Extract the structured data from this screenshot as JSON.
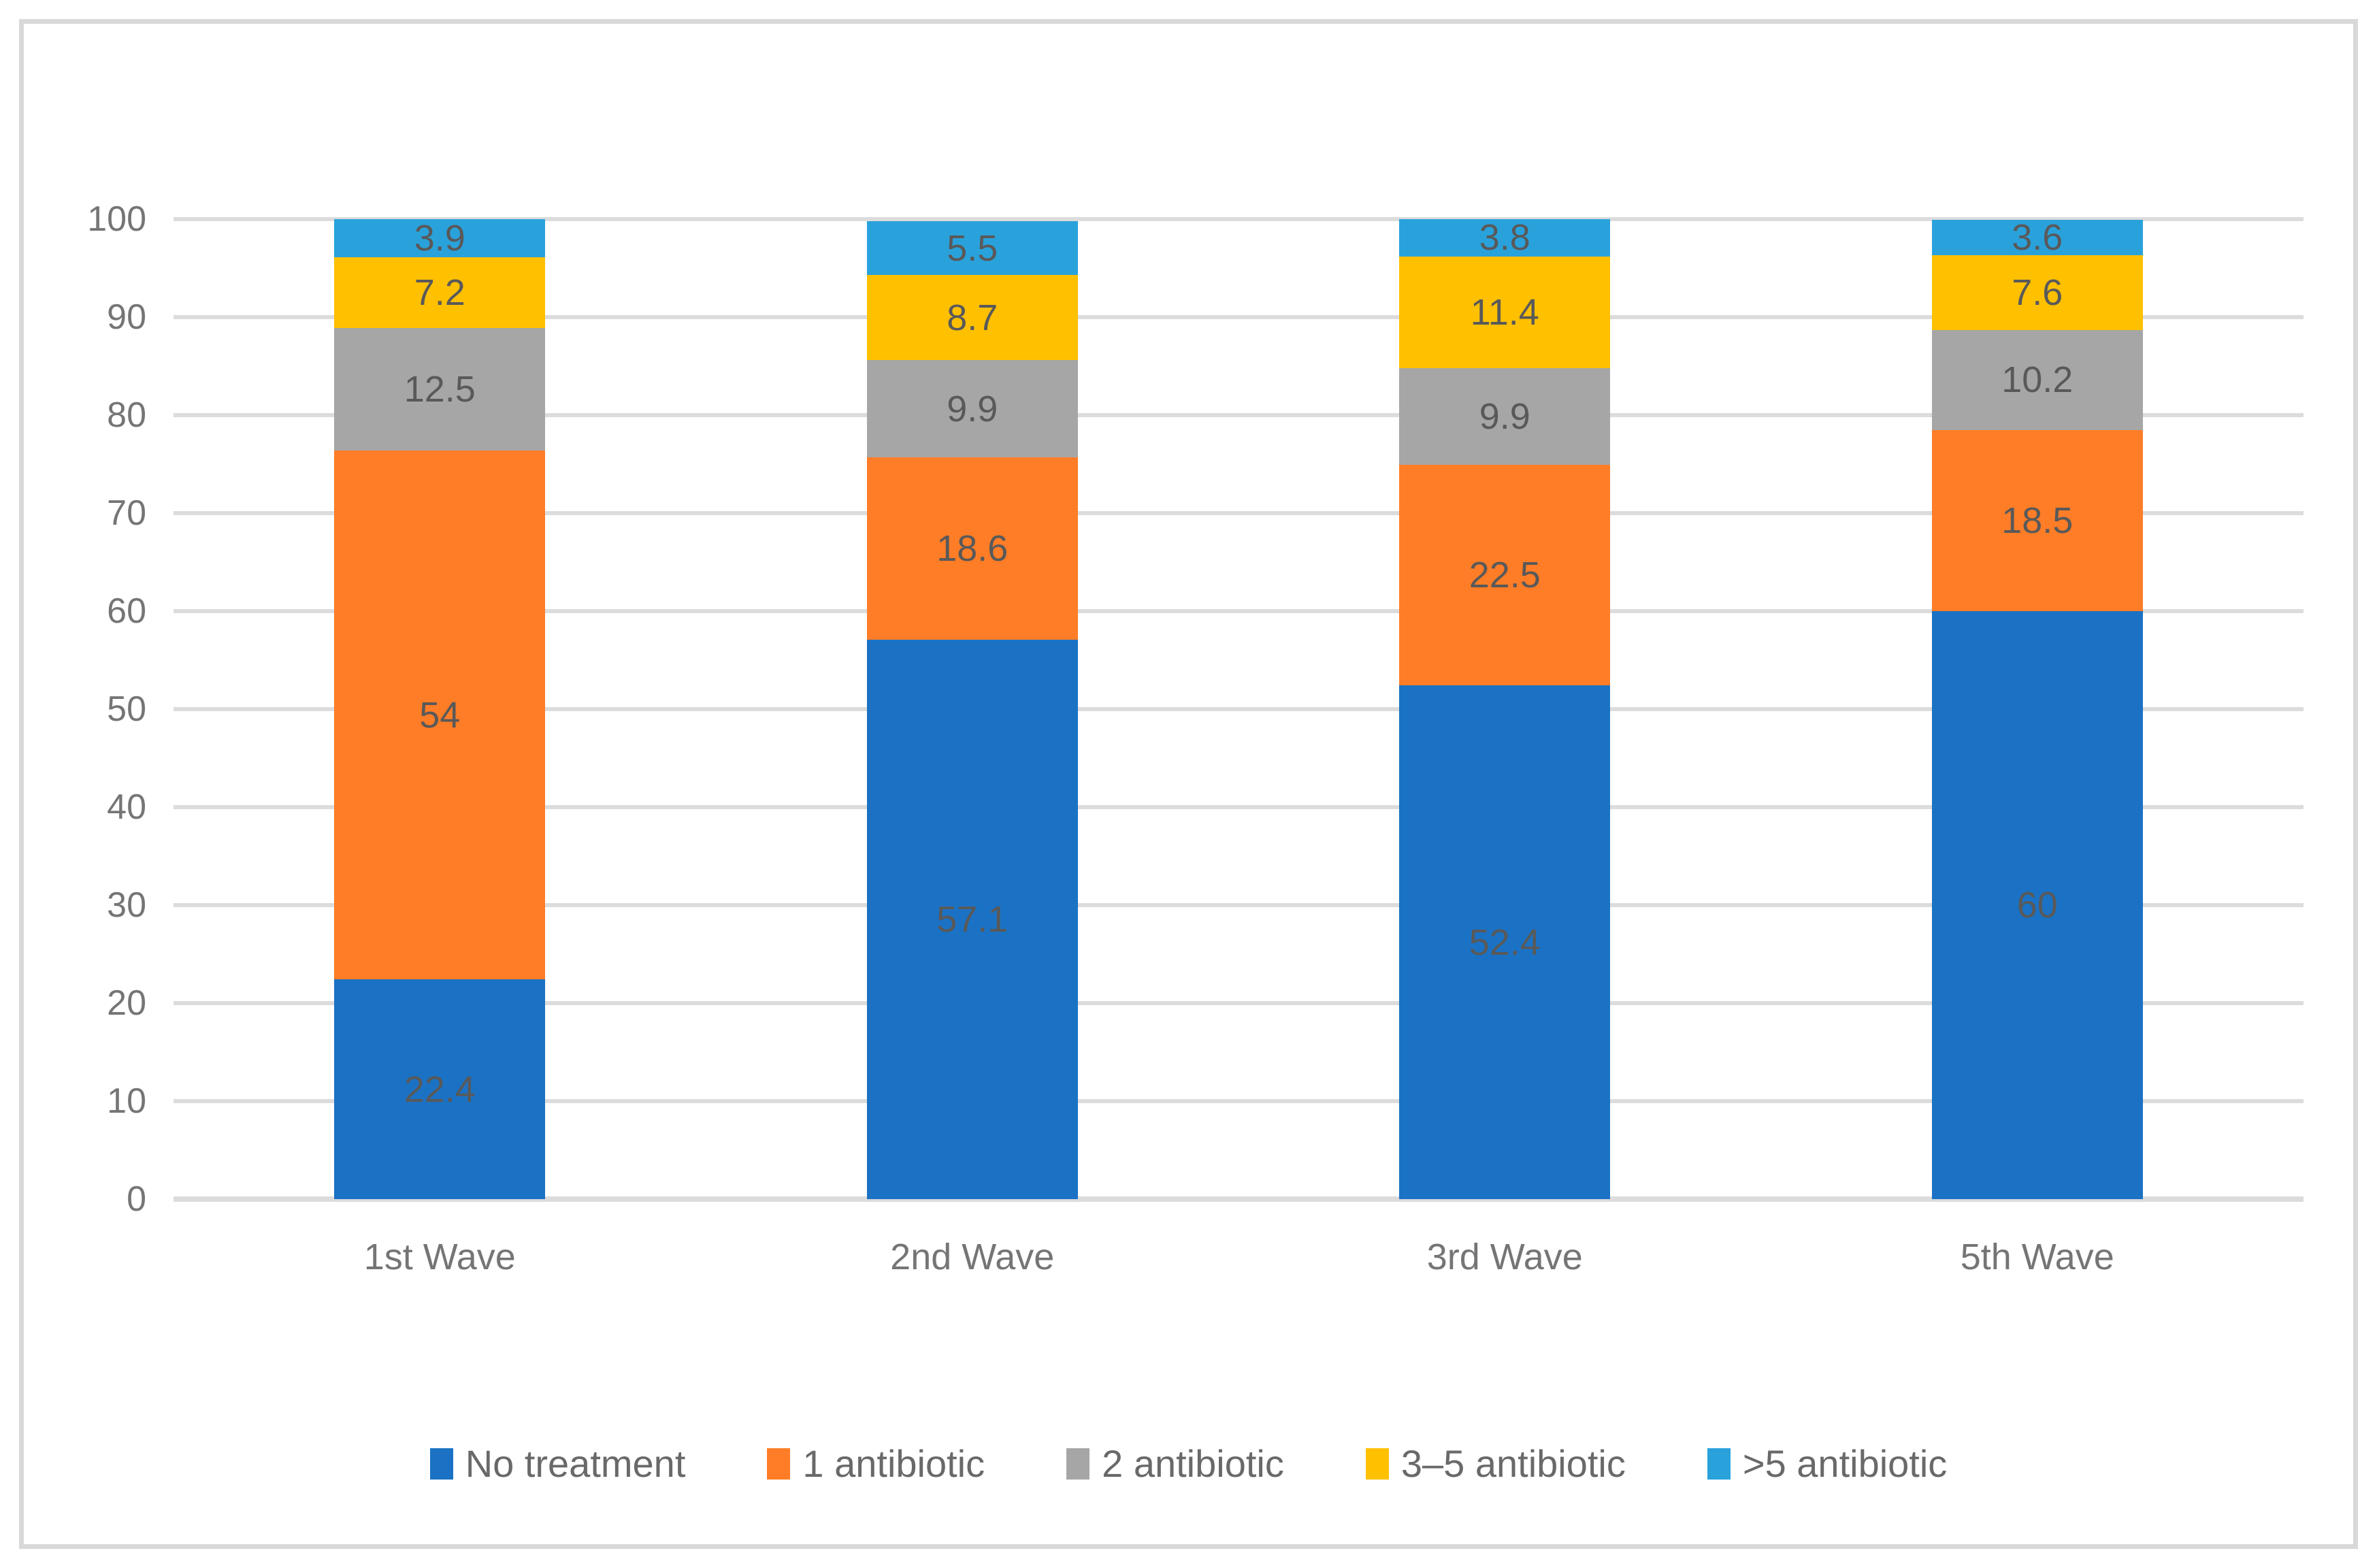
{
  "figure": {
    "background": "#FFFFFF",
    "frame_color": "#D8D8D8"
  },
  "chart_data": {
    "type": "bar",
    "stacked": true,
    "title": "",
    "xlabel": "",
    "ylabel": "",
    "categories": [
      "1st Wave",
      "2nd Wave",
      "3rd Wave",
      "5th Wave"
    ],
    "series": [
      {
        "name": "No treatment",
        "color": "#1B72C4",
        "values": [
          22.4,
          57.1,
          52.4,
          60
        ]
      },
      {
        "name": "1 antibiotic",
        "color": "#FF7D27",
        "values": [
          54,
          18.6,
          22.5,
          18.5
        ]
      },
      {
        "name": "2 antibiotic",
        "color": "#A6A6A6",
        "values": [
          12.5,
          9.9,
          9.9,
          10.2
        ]
      },
      {
        "name": "3–5 antibiotic",
        "color": "#FFC000",
        "values": [
          7.2,
          8.7,
          11.4,
          7.6
        ]
      },
      {
        "name": ">5 antibiotic",
        "color": "#29A2DC",
        "values": [
          3.9,
          5.5,
          3.8,
          3.6
        ]
      }
    ],
    "ylim": [
      0,
      100
    ],
    "y_ticks": [
      0,
      10,
      20,
      30,
      40,
      50,
      60,
      70,
      80,
      90,
      100
    ],
    "grid": true,
    "gridline_color": "#DCDCDC",
    "value_label_color": "#595959",
    "axis_tick_color": "#757575",
    "legend_text_color": "#696969",
    "legend_position": "bottom"
  }
}
